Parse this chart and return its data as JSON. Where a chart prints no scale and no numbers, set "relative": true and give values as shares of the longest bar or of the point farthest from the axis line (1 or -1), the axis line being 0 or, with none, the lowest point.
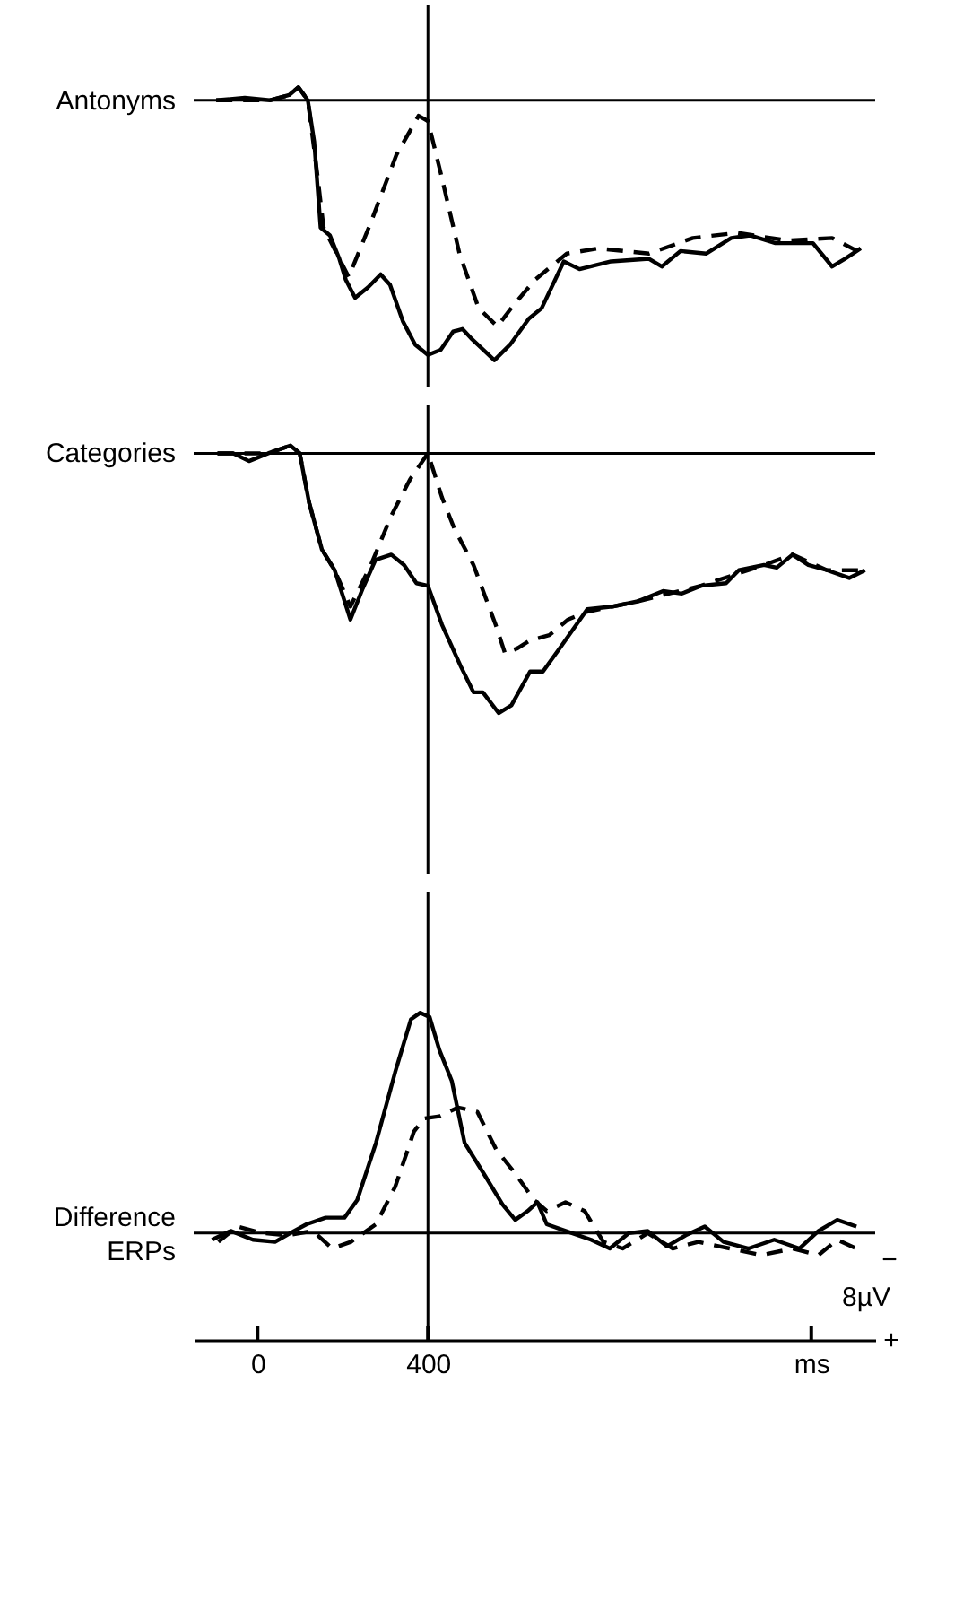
{
  "chart_data": [
    {
      "type": "line",
      "relative": true,
      "ylabel": "Antonyms",
      "xlim": [
        -150,
        1450
      ],
      "tick_labels": false,
      "grid": false,
      "ref_lines": [
        {
          "axis": "x",
          "value": 400
        }
      ],
      "series": [
        {
          "color": "#000000",
          "line_style": "solid",
          "x": [
            -97,
            -30,
            29,
            74,
            96,
            118,
            133,
            148,
            170,
            192,
            207,
            229,
            259,
            289,
            311,
            341,
            370,
            400,
            430,
            459,
            481,
            504,
            556,
            593,
            637,
            667,
            719,
            756,
            830,
            919,
            949,
            993,
            1053,
            1112,
            1156,
            1216,
            1304,
            1349,
            1379,
            1416
          ],
          "values": [
            0.0,
            0.01,
            0.0,
            0.02,
            0.05,
            0.0,
            -0.16,
            -0.49,
            -0.52,
            -0.61,
            -0.69,
            -0.76,
            -0.72,
            -0.67,
            -0.71,
            -0.85,
            -0.94,
            -0.98,
            -0.96,
            -0.89,
            -0.88,
            -0.92,
            -1.0,
            -0.94,
            -0.84,
            -0.8,
            -0.62,
            -0.65,
            -0.62,
            -0.61,
            -0.64,
            -0.58,
            -0.59,
            -0.53,
            -0.52,
            -0.55,
            -0.55,
            -0.64,
            -0.61,
            -0.57
          ]
        },
        {
          "color": "#000000",
          "line_style": "dashed",
          "x": [
            -97,
            29,
            74,
            96,
            118,
            140,
            155,
            192,
            214,
            266,
            326,
            378,
            400,
            430,
            474,
            519,
            563,
            600,
            652,
            726,
            800,
            919,
            1022,
            1126,
            1245,
            1349,
            1408
          ],
          "values": [
            0.0,
            0.0,
            0.02,
            0.05,
            0.0,
            -0.28,
            -0.49,
            -0.61,
            -0.68,
            -0.47,
            -0.21,
            -0.06,
            -0.08,
            -0.28,
            -0.59,
            -0.8,
            -0.87,
            -0.79,
            -0.69,
            -0.59,
            -0.57,
            -0.59,
            -0.53,
            -0.51,
            -0.54,
            -0.53,
            -0.58
          ]
        }
      ]
    },
    {
      "type": "line",
      "relative": true,
      "ylabel": "Categories",
      "xlim": [
        -150,
        1450
      ],
      "tick_labels": false,
      "grid": false,
      "ref_lines": [
        {
          "axis": "x",
          "value": 400
        }
      ],
      "series": [
        {
          "color": "#000000",
          "line_style": "solid",
          "x": [
            -94,
            -57,
            -20,
            25,
            77,
            99,
            121,
            151,
            181,
            218,
            247,
            277,
            314,
            344,
            373,
            400,
            433,
            477,
            507,
            529,
            566,
            596,
            640,
            670,
            714,
            774,
            833,
            892,
            952,
            996,
            1041,
            1100,
            1130,
            1189,
            1219,
            1256,
            1293,
            1337,
            1389,
            1426
          ],
          "values": [
            0.0,
            0.0,
            -0.03,
            0.0,
            0.03,
            0.0,
            -0.19,
            -0.37,
            -0.45,
            -0.64,
            -0.52,
            -0.41,
            -0.39,
            -0.43,
            -0.5,
            -0.51,
            -0.66,
            -0.82,
            -0.92,
            -0.92,
            -1.0,
            -0.97,
            -0.84,
            -0.84,
            -0.74,
            -0.6,
            -0.59,
            -0.57,
            -0.53,
            -0.54,
            -0.51,
            -0.5,
            -0.45,
            -0.43,
            -0.44,
            -0.39,
            -0.43,
            -0.45,
            -0.48,
            -0.45
          ]
        },
        {
          "color": "#000000",
          "line_style": "dashed",
          "x": [
            -94,
            25,
            77,
            99,
            121,
            151,
            181,
            218,
            266,
            314,
            358,
            400,
            433,
            462,
            507,
            559,
            581,
            611,
            640,
            685,
            729,
            774,
            892,
            1041,
            1189,
            1256,
            1337,
            1426
          ],
          "values": [
            0.0,
            0.0,
            0.03,
            0.0,
            -0.19,
            -0.37,
            -0.45,
            -0.59,
            -0.43,
            -0.24,
            -0.1,
            0.0,
            -0.17,
            -0.29,
            -0.43,
            -0.66,
            -0.77,
            -0.75,
            -0.72,
            -0.7,
            -0.64,
            -0.61,
            -0.57,
            -0.51,
            -0.43,
            -0.39,
            -0.45,
            -0.45
          ]
        }
      ]
    },
    {
      "type": "line",
      "relative": true,
      "ylabel": "Difference ERPs",
      "xlim": [
        -150,
        1450
      ],
      "tick_labels": "x",
      "grid": false,
      "xticks": [
        0,
        400,
        {
          "value": 1300,
          "label": "ms"
        }
      ],
      "ref_lines": [
        {
          "axis": "x",
          "value": 400
        }
      ],
      "annotations": [
        "−",
        "8µV",
        "+"
      ],
      "series": [
        {
          "color": "#000000",
          "line_style": "solid",
          "x": [
            -107,
            -63,
            -11,
            41,
            86,
            115,
            160,
            204,
            234,
            278,
            323,
            360,
            382,
            404,
            427,
            456,
            486,
            531,
            575,
            605,
            634,
            657,
            679,
            723,
            783,
            827,
            872,
            916,
            961,
            1005,
            1050,
            1094,
            1153,
            1213,
            1272,
            1317,
            1361,
            1406
          ],
          "values": [
            -0.03,
            0.01,
            -0.03,
            -0.04,
            0.01,
            0.04,
            0.07,
            0.07,
            0.15,
            0.41,
            0.73,
            0.97,
            1.0,
            0.98,
            0.83,
            0.69,
            0.41,
            0.27,
            0.13,
            0.06,
            0.1,
            0.14,
            0.04,
            0.01,
            -0.03,
            -0.07,
            0.0,
            0.01,
            -0.06,
            -0.01,
            0.03,
            -0.04,
            -0.07,
            -0.03,
            -0.07,
            0.01,
            0.06,
            0.03
          ]
        },
        {
          "color": "#000000",
          "line_style": "dashed",
          "x": [
            -92,
            -48,
            11,
            71,
            130,
            175,
            219,
            278,
            323,
            367,
            390,
            427,
            471,
            516,
            560,
            605,
            649,
            679,
            723,
            768,
            812,
            857,
            916,
            975,
            1035,
            1109,
            1183,
            1257,
            1317,
            1361,
            1406
          ],
          "values": [
            -0.04,
            0.03,
            0.0,
            -0.01,
            0.01,
            -0.07,
            -0.04,
            0.04,
            0.21,
            0.46,
            0.52,
            0.53,
            0.57,
            0.55,
            0.38,
            0.27,
            0.15,
            0.1,
            0.14,
            0.1,
            -0.04,
            -0.07,
            0.0,
            -0.07,
            -0.04,
            -0.07,
            -0.1,
            -0.07,
            -0.1,
            -0.03,
            -0.07
          ]
        }
      ]
    }
  ]
}
